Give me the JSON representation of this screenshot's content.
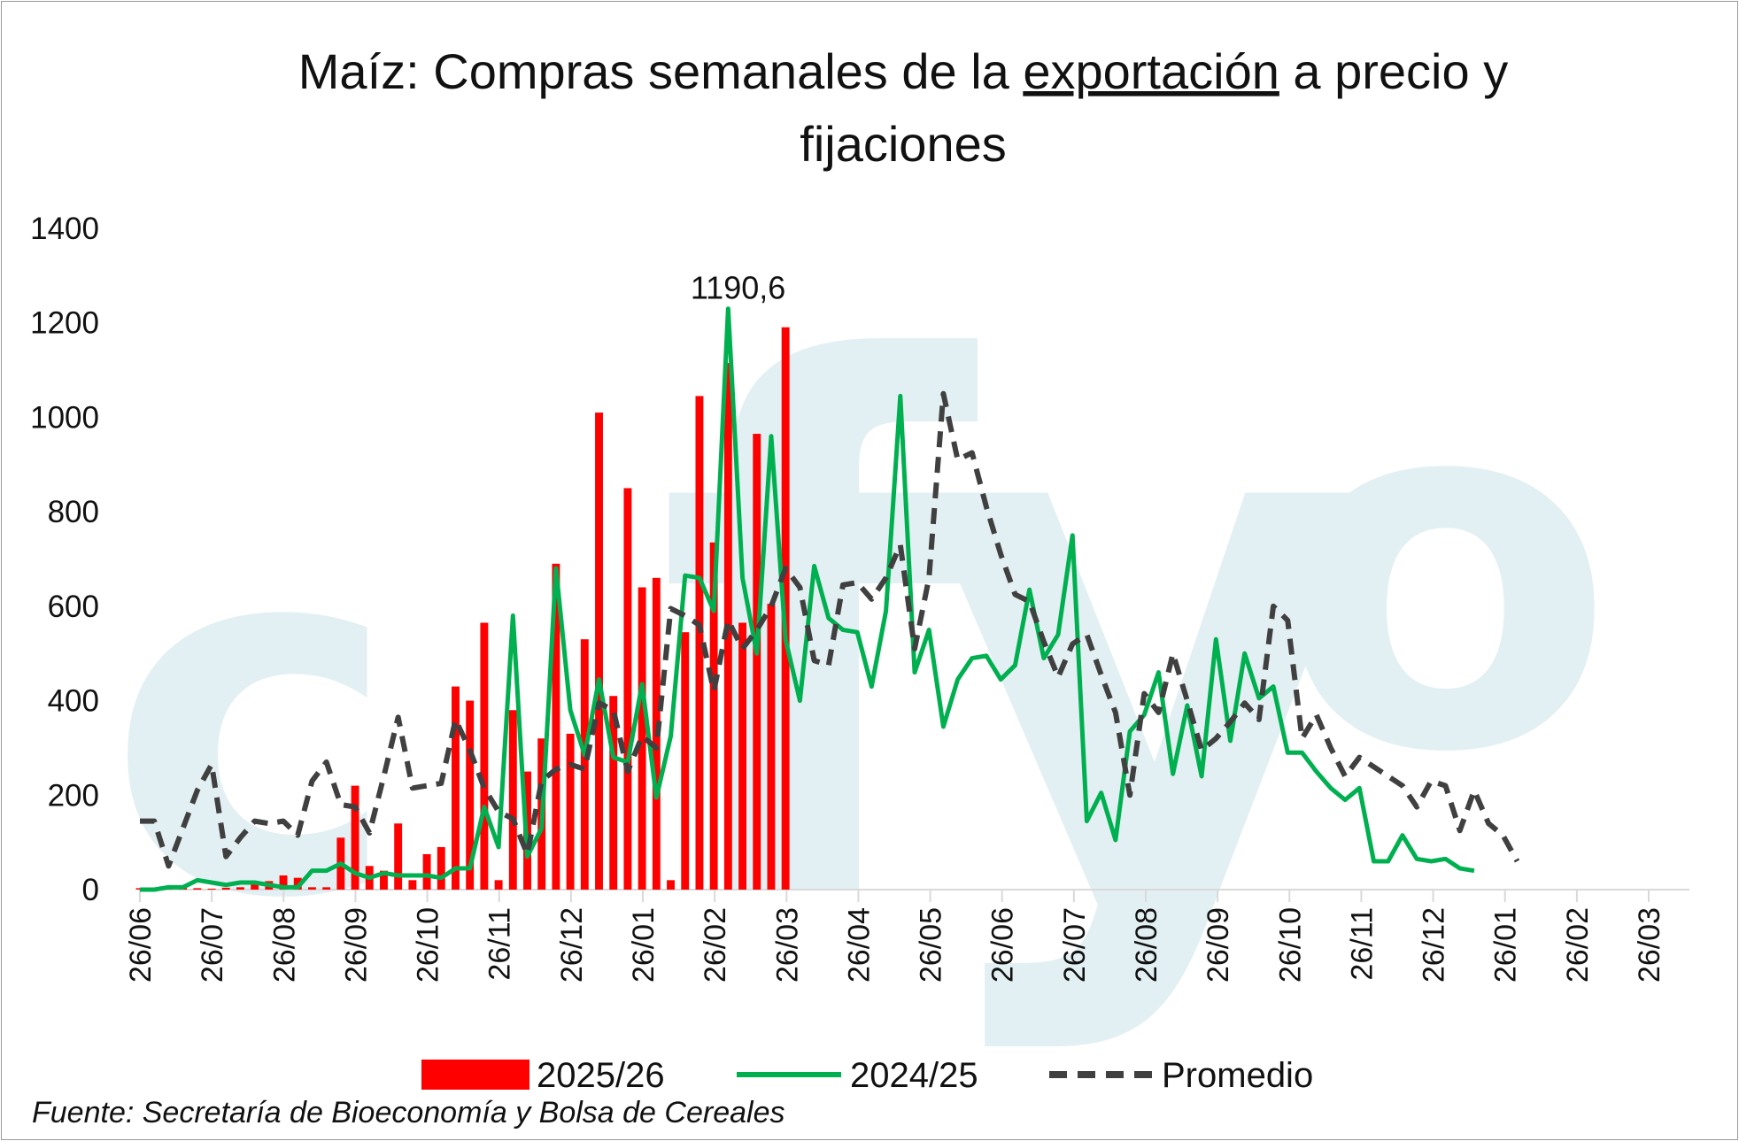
{
  "title_line1_before": "Maíz: Compras semanales de la ",
  "title_line1_underlined": "exportación",
  "title_line1_after": " a precio y",
  "title_line2": "fijaciones",
  "source_note": "Fuente: Secretaría de Bioeconomía y Bolsa de Cereales",
  "watermark_letters": [
    "c",
    "f",
    "y",
    "o"
  ],
  "colors": {
    "bar_2025_26": "#ff0000",
    "line_2024_25": "#00b050",
    "line_promedio": "#404040",
    "watermark": "#e3f0f3",
    "axis": "#d9d9d9"
  },
  "chart_data": {
    "type": "bar+line",
    "ylim": [
      0,
      1400
    ],
    "yticks": [
      "0",
      "200",
      "400",
      "600",
      "800",
      "1000",
      "1200",
      "1400"
    ],
    "xticks": [
      "26/06",
      "26/07",
      "26/08",
      "26/09",
      "26/10",
      "26/11",
      "26/12",
      "26/01",
      "26/02",
      "26/03",
      "26/04",
      "26/05",
      "26/06",
      "26/07",
      "26/08",
      "26/09",
      "26/10",
      "26/11",
      "26/12",
      "26/01",
      "26/02",
      "26/03"
    ],
    "weeks_total": 109,
    "legend": [
      "2025/26",
      "2024/25",
      "Promedio"
    ],
    "annotation": {
      "text": "1190,6",
      "week": 42,
      "value": 1190.6
    },
    "series": [
      {
        "name": "2025/26",
        "type": "bar",
        "values": [
          3,
          3,
          5,
          4,
          3,
          2,
          4,
          5,
          12,
          18,
          30,
          25,
          5,
          5,
          110,
          220,
          50,
          40,
          140,
          20,
          75,
          90,
          430,
          400,
          565,
          20,
          380,
          250,
          320,
          690,
          330,
          530,
          1010,
          410,
          850,
          640,
          660,
          20,
          545,
          1045,
          735,
          1115,
          565,
          965,
          605,
          1190.6
        ]
      },
      {
        "name": "2024/25",
        "type": "line",
        "values": [
          0,
          0,
          5,
          5,
          20,
          15,
          10,
          15,
          15,
          10,
          5,
          5,
          40,
          40,
          55,
          35,
          25,
          35,
          30,
          30,
          30,
          25,
          45,
          45,
          175,
          90,
          580,
          70,
          130,
          680,
          380,
          285,
          445,
          280,
          270,
          435,
          195,
          325,
          665,
          660,
          590,
          1230,
          660,
          500,
          960,
          530,
          400,
          685,
          575,
          550,
          545,
          430,
          590,
          1045,
          460,
          550,
          345,
          445,
          490,
          495,
          445,
          475,
          635,
          490,
          540,
          750,
          145,
          205,
          105,
          335,
          370,
          460,
          245,
          390,
          240,
          530,
          315,
          500,
          405,
          430,
          290,
          290,
          250,
          215,
          190,
          215,
          60,
          60,
          115,
          65,
          60,
          65,
          45,
          40
        ]
      },
      {
        "name": "Promedio",
        "type": "line",
        "values": [
          145,
          145,
          50,
          130,
          210,
          265,
          70,
          110,
          145,
          140,
          145,
          115,
          230,
          270,
          180,
          175,
          120,
          240,
          365,
          215,
          220,
          225,
          360,
          295,
          215,
          165,
          150,
          75,
          230,
          255,
          265,
          255,
          395,
          380,
          250,
          325,
          300,
          595,
          580,
          560,
          420,
          570,
          510,
          550,
          600,
          680,
          640,
          485,
          475,
          645,
          650,
          615,
          660,
          730,
          510,
          660,
          1050,
          910,
          925,
          810,
          710,
          625,
          610,
          525,
          450,
          520,
          540,
          455,
          375,
          200,
          415,
          375,
          500,
          400,
          295,
          320,
          355,
          395,
          360,
          600,
          570,
          320,
          370,
          300,
          240,
          280,
          260,
          240,
          220,
          175,
          230,
          220,
          125,
          210,
          140,
          115,
          60
        ]
      }
    ]
  }
}
